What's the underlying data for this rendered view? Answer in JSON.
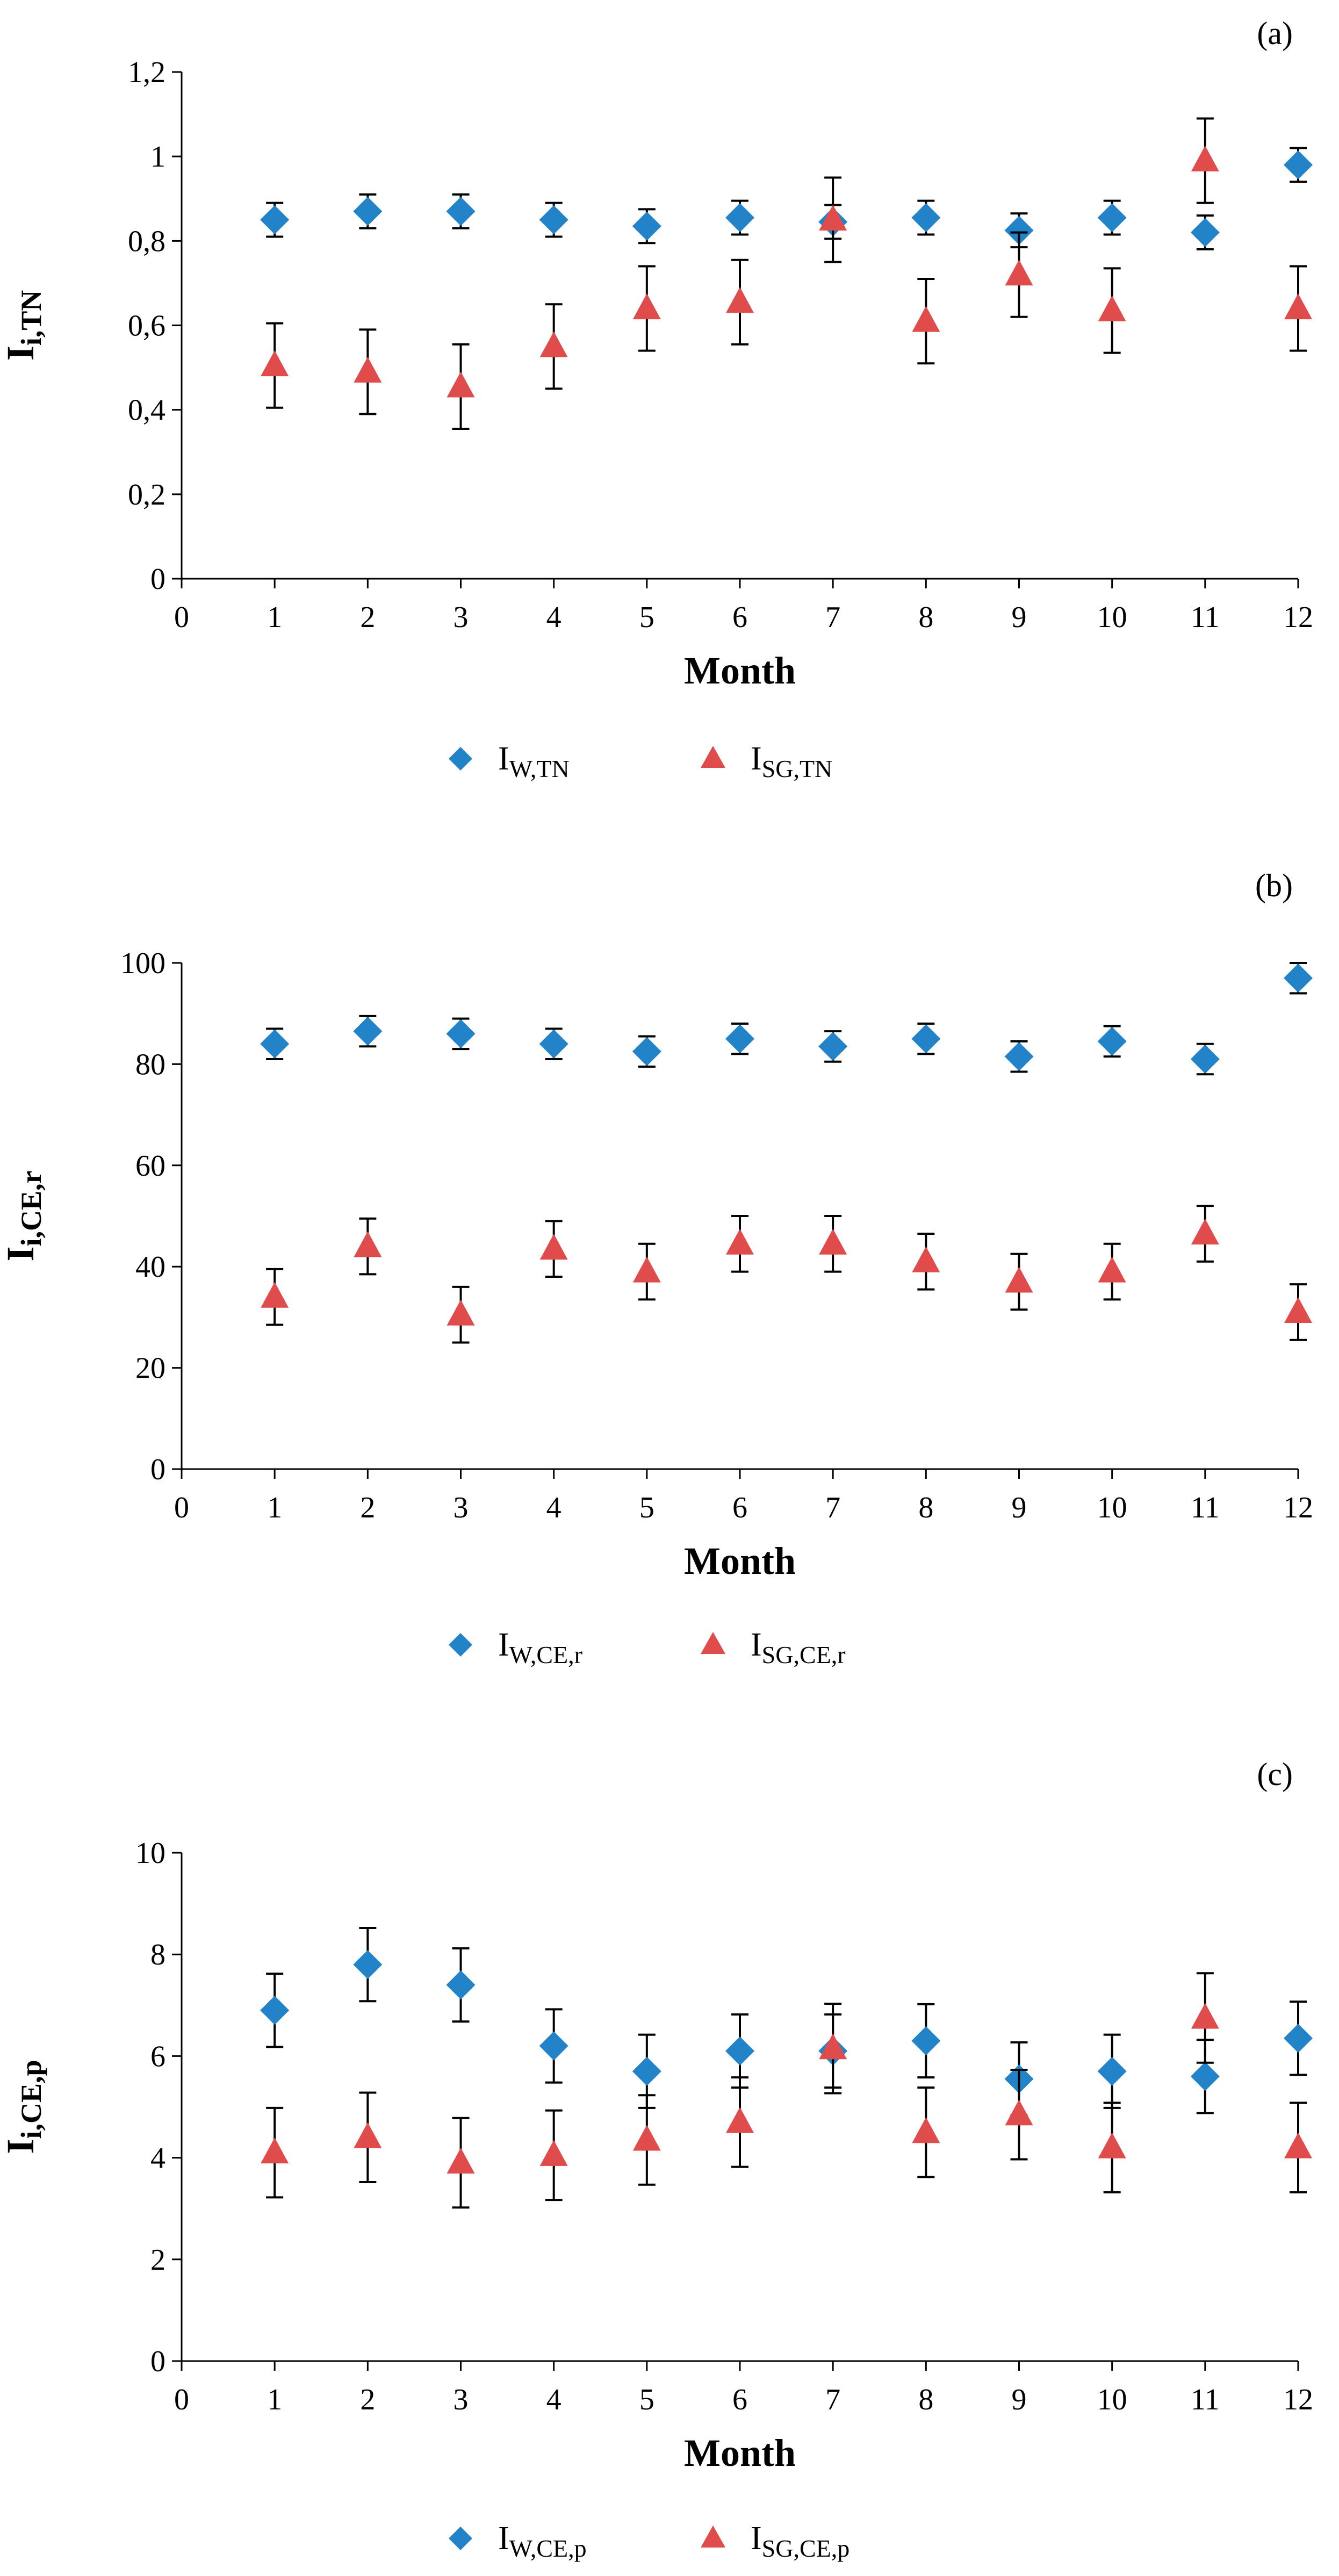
{
  "chart_data": [
    {
      "type": "scatter",
      "panel_label": "(a)",
      "xlabel": "Month",
      "ylabel": {
        "main": "I",
        "sub": "i,TN"
      },
      "xlim": [
        0,
        12
      ],
      "ylim": [
        0,
        1.2
      ],
      "x_ticks": [
        0,
        1,
        2,
        3,
        4,
        5,
        6,
        7,
        8,
        9,
        10,
        11,
        12
      ],
      "y_ticks": [
        0,
        0.2,
        0.4,
        0.6,
        0.8,
        1.0,
        1.2
      ],
      "y_tick_labels": [
        "0",
        "0,2",
        "0,4",
        "0,6",
        "0,8",
        "1",
        "1,2"
      ],
      "legend_position": "bottom",
      "series": [
        {
          "name": "I_W,TN",
          "legend": {
            "main": "I",
            "sub": "W,TN"
          },
          "marker": "diamond",
          "color": "#2383C8",
          "x": [
            1,
            2,
            3,
            4,
            5,
            6,
            7,
            8,
            9,
            10,
            11,
            12
          ],
          "y": [
            0.85,
            0.87,
            0.87,
            0.85,
            0.835,
            0.855,
            0.845,
            0.855,
            0.825,
            0.855,
            0.82,
            0.98
          ],
          "err": [
            0.04,
            0.04,
            0.04,
            0.04,
            0.04,
            0.04,
            0.04,
            0.04,
            0.04,
            0.04,
            0.04,
            0.04
          ]
        },
        {
          "name": "I_SG,TN",
          "legend": {
            "main": "I",
            "sub": "SG,TN"
          },
          "marker": "triangle",
          "color": "#E04C4C",
          "x": [
            1,
            2,
            3,
            4,
            5,
            6,
            7,
            8,
            9,
            10,
            11,
            12
          ],
          "y": [
            0.505,
            0.49,
            0.455,
            0.55,
            0.64,
            0.655,
            0.85,
            0.61,
            0.72,
            0.635,
            0.99,
            0.64
          ],
          "err": [
            0.1,
            0.1,
            0.1,
            0.1,
            0.1,
            0.1,
            0.1,
            0.1,
            0.1,
            0.1,
            0.1,
            0.1
          ]
        }
      ]
    },
    {
      "type": "scatter",
      "panel_label": "(b)",
      "xlabel": "Month",
      "ylabel": {
        "main": "I",
        "sub": "i,CE,r"
      },
      "xlim": [
        0,
        12
      ],
      "ylim": [
        0,
        100
      ],
      "x_ticks": [
        0,
        1,
        2,
        3,
        4,
        5,
        6,
        7,
        8,
        9,
        10,
        11,
        12
      ],
      "y_ticks": [
        0,
        20,
        40,
        60,
        80,
        100
      ],
      "y_tick_labels": [
        "0",
        "20",
        "40",
        "60",
        "80",
        "100"
      ],
      "legend_position": "bottom",
      "series": [
        {
          "name": "I_W,CE,r",
          "legend": {
            "main": "I",
            "sub": "W,CE,r"
          },
          "marker": "diamond",
          "color": "#2383C8",
          "x": [
            1,
            2,
            3,
            4,
            5,
            6,
            7,
            8,
            9,
            10,
            11,
            12
          ],
          "y": [
            84,
            86.5,
            86,
            84,
            82.5,
            85,
            83.5,
            85,
            81.5,
            84.5,
            81,
            97
          ],
          "err": [
            3,
            3,
            3,
            3,
            3,
            3,
            3,
            3,
            3,
            3,
            3,
            3
          ]
        },
        {
          "name": "I_SG,CE,r",
          "legend": {
            "main": "I",
            "sub": "SG,CE,r"
          },
          "marker": "triangle",
          "color": "#E04C4C",
          "x": [
            1,
            2,
            3,
            4,
            5,
            6,
            7,
            8,
            9,
            10,
            11,
            12
          ],
          "y": [
            34,
            44,
            30.5,
            43.5,
            39,
            44.5,
            44.5,
            41,
            37,
            39,
            46.5,
            31
          ],
          "err": [
            5.5,
            5.5,
            5.5,
            5.5,
            5.5,
            5.5,
            5.5,
            5.5,
            5.5,
            5.5,
            5.5,
            5.5
          ]
        }
      ]
    },
    {
      "type": "scatter",
      "panel_label": "(c)",
      "xlabel": "Month",
      "ylabel": {
        "main": "I",
        "sub": "i,CE,p"
      },
      "xlim": [
        0,
        12
      ],
      "ylim": [
        0,
        10
      ],
      "x_ticks": [
        0,
        1,
        2,
        3,
        4,
        5,
        6,
        7,
        8,
        9,
        10,
        11,
        12
      ],
      "y_ticks": [
        0,
        2,
        4,
        6,
        8,
        10
      ],
      "y_tick_labels": [
        "0",
        "2",
        "4",
        "6",
        "8",
        "10"
      ],
      "legend_position": "bottom",
      "series": [
        {
          "name": "I_W,CE,p",
          "legend": {
            "main": "I",
            "sub": "W,CE,p"
          },
          "marker": "diamond",
          "color": "#2383C8",
          "x": [
            1,
            2,
            3,
            4,
            5,
            6,
            7,
            8,
            9,
            10,
            11,
            12
          ],
          "y": [
            6.9,
            7.8,
            7.4,
            6.2,
            5.7,
            6.1,
            6.1,
            6.3,
            5.55,
            5.7,
            5.6,
            6.35
          ],
          "err": [
            0.72,
            0.72,
            0.72,
            0.72,
            0.72,
            0.72,
            0.72,
            0.72,
            0.72,
            0.72,
            0.72,
            0.72
          ]
        },
        {
          "name": "I_SG,CE,p",
          "legend": {
            "main": "I",
            "sub": "SG,CE,p"
          },
          "marker": "triangle",
          "color": "#E04C4C",
          "x": [
            1,
            2,
            3,
            4,
            5,
            6,
            7,
            8,
            9,
            10,
            11,
            12
          ],
          "y": [
            4.1,
            4.4,
            3.9,
            4.05,
            4.35,
            4.7,
            6.15,
            4.5,
            4.85,
            4.2,
            6.75,
            4.2
          ],
          "err": [
            0.88,
            0.88,
            0.88,
            0.88,
            0.88,
            0.88,
            0.88,
            0.88,
            0.88,
            0.88,
            0.88,
            0.88
          ]
        }
      ]
    }
  ]
}
